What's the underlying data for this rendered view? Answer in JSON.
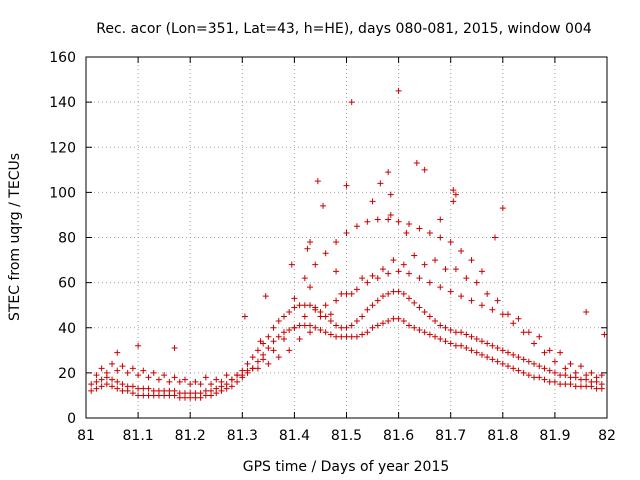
{
  "chart_data": {
    "type": "scatter",
    "title": "Rec. acor (Lon=351, Lat=43, h=HE), days 080-081, 2015, window 004",
    "xlabel": "GPS time / Days of year 2015",
    "ylabel": "STEC from uqrg / TECUs",
    "xlim": [
      81,
      82
    ],
    "ylim": [
      0,
      160
    ],
    "xticks": [
      "81",
      "81.1",
      "81.2",
      "81.3",
      "81.4",
      "81.5",
      "81.6",
      "81.7",
      "81.8",
      "81.9",
      "82"
    ],
    "yticks": [
      "0",
      "20",
      "40",
      "60",
      "80",
      "100",
      "120",
      "140",
      "160"
    ],
    "grid": true,
    "marker": "+",
    "color": "#cc0000",
    "series": [
      {
        "name": "STEC",
        "x": [
          81.01,
          81.02,
          81.03,
          81.04,
          81.05,
          81.06,
          81.07,
          81.08,
          81.09,
          81.1,
          81.11,
          81.12,
          81.13,
          81.14,
          81.15,
          81.16,
          81.17,
          81.18,
          81.19,
          81.2,
          81.21,
          81.22,
          81.23,
          81.24,
          81.25,
          81.26,
          81.27,
          81.28,
          81.29,
          81.3,
          81.31,
          81.32,
          81.33,
          81.34,
          81.35,
          81.36,
          81.37,
          81.38,
          81.39,
          81.4,
          81.41,
          81.42,
          81.43,
          81.44,
          81.45,
          81.46,
          81.47,
          81.48,
          81.49,
          81.5,
          81.51,
          81.52,
          81.53,
          81.54,
          81.55,
          81.56,
          81.57,
          81.58,
          81.59,
          81.6,
          81.61,
          81.62,
          81.63,
          81.64,
          81.65,
          81.66,
          81.67,
          81.68,
          81.69,
          81.7,
          81.71,
          81.72,
          81.73,
          81.74,
          81.75,
          81.76,
          81.77,
          81.78,
          81.79,
          81.8,
          81.81,
          81.82,
          81.83,
          81.84,
          81.85,
          81.86,
          81.87,
          81.88,
          81.89,
          81.9,
          81.91,
          81.92,
          81.93,
          81.94,
          81.95,
          81.96,
          81.97,
          81.98,
          81.99,
          81.01,
          81.02,
          81.03,
          81.04,
          81.05,
          81.06,
          81.07,
          81.08,
          81.09,
          81.1,
          81.11,
          81.12,
          81.13,
          81.14,
          81.15,
          81.16,
          81.17,
          81.18,
          81.19,
          81.2,
          81.21,
          81.22,
          81.23,
          81.24,
          81.25,
          81.26,
          81.27,
          81.28,
          81.29,
          81.3,
          81.31,
          81.32,
          81.33,
          81.34,
          81.35,
          81.36,
          81.37,
          81.38,
          81.39,
          81.4,
          81.41,
          81.42,
          81.43,
          81.44,
          81.45,
          81.46,
          81.47,
          81.48,
          81.49,
          81.5,
          81.51,
          81.52,
          81.53,
          81.54,
          81.55,
          81.56,
          81.57,
          81.58,
          81.59,
          81.6,
          81.61,
          81.62,
          81.63,
          81.64,
          81.65,
          81.66,
          81.67,
          81.68,
          81.69,
          81.7,
          81.71,
          81.72,
          81.73,
          81.74,
          81.75,
          81.76,
          81.77,
          81.78,
          81.79,
          81.8,
          81.81,
          81.82,
          81.83,
          81.84,
          81.85,
          81.86,
          81.87,
          81.88,
          81.89,
          81.9,
          81.91,
          81.92,
          81.93,
          81.94,
          81.95,
          81.96,
          81.97,
          81.98,
          81.99,
          81.02,
          81.04,
          81.06,
          81.08,
          81.1,
          81.12,
          81.14,
          81.16,
          81.18,
          81.2,
          81.22,
          81.24,
          81.26,
          81.28,
          81.3,
          81.32,
          81.34,
          81.36,
          81.38,
          81.4,
          81.42,
          81.44,
          81.46,
          81.48,
          81.5,
          81.52,
          81.54,
          81.56,
          81.58,
          81.6,
          81.62,
          81.64,
          81.66,
          81.68,
          81.7,
          81.72,
          81.74,
          81.76,
          81.78,
          81.8,
          81.82,
          81.84,
          81.86,
          81.88,
          81.9,
          81.92,
          81.94,
          81.96,
          81.98,
          81.03,
          81.07,
          81.11,
          81.15,
          81.19,
          81.23,
          81.27,
          81.31,
          81.35,
          81.39,
          81.43,
          81.47,
          81.51,
          81.55,
          81.59,
          81.63,
          81.67,
          81.71,
          81.75,
          81.79,
          81.83,
          81.87,
          81.91,
          81.95,
          81.99,
          81.05,
          81.09,
          81.13,
          81.17,
          81.21,
          81.25,
          81.29,
          81.33,
          81.37,
          81.41,
          81.45,
          81.49,
          81.53,
          81.57,
          81.61,
          81.65,
          81.69,
          81.73,
          81.77,
          81.81,
          81.85,
          81.89,
          81.93,
          81.97,
          81.4,
          81.42,
          81.44,
          81.46,
          81.48,
          81.5,
          81.52,
          81.54,
          81.56,
          81.58,
          81.6,
          81.62,
          81.64,
          81.66,
          81.68,
          81.7,
          81.72,
          81.74,
          81.76,
          81.445,
          81.51,
          81.5,
          81.6,
          81.585,
          81.58,
          81.565,
          81.635,
          81.65,
          81.615,
          81.705,
          81.71,
          81.8,
          81.705,
          81.585,
          81.55,
          81.68,
          81.48,
          81.455,
          81.395,
          81.345,
          81.785,
          81.96,
          81.995,
          81.1,
          81.06,
          81.17,
          81.305,
          81.335,
          81.43,
          81.43,
          81.425
        ],
        "y": [
          12,
          13,
          14,
          15,
          14,
          13,
          12,
          12,
          11,
          10,
          10,
          10,
          10,
          10,
          10,
          10,
          10,
          9,
          9,
          9,
          9,
          9,
          10,
          10,
          11,
          12,
          13,
          14,
          16,
          18,
          20,
          22,
          25,
          28,
          31,
          34,
          36,
          38,
          39,
          40,
          41,
          41,
          41,
          40,
          39,
          38,
          37,
          36,
          36,
          36,
          36,
          36,
          37,
          38,
          40,
          41,
          42,
          43,
          44,
          44,
          43,
          41,
          40,
          39,
          38,
          37,
          36,
          35,
          34,
          33,
          32,
          32,
          31,
          30,
          29,
          28,
          27,
          26,
          25,
          24,
          23,
          22,
          21,
          20,
          19,
          18,
          18,
          17,
          16,
          16,
          15,
          15,
          15,
          14,
          14,
          14,
          14,
          13,
          13,
          15,
          16,
          17,
          18,
          17,
          16,
          15,
          14,
          14,
          13,
          13,
          13,
          12,
          12,
          12,
          12,
          12,
          11,
          11,
          11,
          11,
          11,
          12,
          12,
          13,
          14,
          15,
          17,
          19,
          21,
          24,
          27,
          30,
          33,
          36,
          40,
          43,
          45,
          47,
          49,
          50,
          50,
          50,
          49,
          47,
          45,
          43,
          41,
          40,
          40,
          41,
          43,
          45,
          48,
          50,
          52,
          54,
          55,
          56,
          56,
          55,
          53,
          51,
          49,
          47,
          45,
          43,
          41,
          40,
          39,
          38,
          38,
          37,
          36,
          35,
          34,
          33,
          32,
          31,
          30,
          29,
          28,
          27,
          26,
          25,
          24,
          23,
          22,
          21,
          20,
          19,
          19,
          18,
          18,
          17,
          17,
          16,
          16,
          15,
          19,
          20,
          21,
          20,
          19,
          18,
          17,
          16,
          16,
          15,
          15,
          15,
          16,
          17,
          19,
          22,
          26,
          30,
          35,
          40,
          45,
          48,
          50,
          52,
          55,
          57,
          60,
          62,
          64,
          65,
          64,
          62,
          60,
          58,
          56,
          54,
          52,
          50,
          48,
          46,
          42,
          38,
          33,
          29,
          25,
          22,
          20,
          19,
          18,
          22,
          23,
          21,
          19,
          17,
          18,
          19,
          21,
          24,
          30,
          38,
          46,
          55,
          63,
          70,
          72,
          70,
          66,
          60,
          52,
          44,
          36,
          29,
          23,
          19,
          24,
          22,
          20,
          18,
          16,
          17,
          19,
          22,
          27,
          35,
          45,
          55,
          62,
          66,
          68,
          68,
          66,
          62,
          55,
          46,
          38,
          30,
          24,
          20,
          53,
          62,
          68,
          73,
          78,
          82,
          85,
          87,
          88,
          88,
          87,
          86,
          84,
          82,
          80,
          78,
          74,
          70,
          65,
          105,
          140,
          103,
          145,
          99,
          109,
          104,
          113,
          110,
          82,
          101,
          99,
          93,
          96,
          90,
          96,
          88,
          65,
          94,
          68,
          54,
          80,
          47,
          37,
          32,
          29,
          31,
          45,
          34,
          58,
          78,
          75
        ]
      }
    ]
  }
}
